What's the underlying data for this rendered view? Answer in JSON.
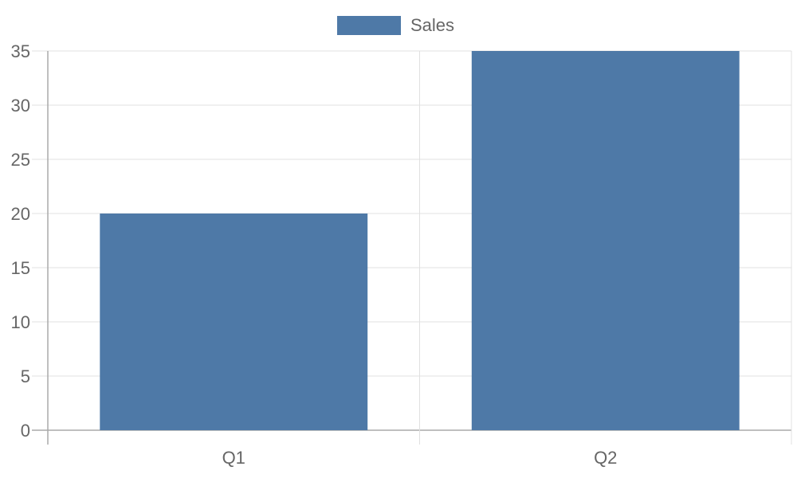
{
  "chart_data": {
    "type": "bar",
    "categories": [
      "Q1",
      "Q2"
    ],
    "series": [
      {
        "name": "Sales",
        "values": [
          20,
          35
        ],
        "color": "#4e79a7"
      }
    ],
    "title": "",
    "xlabel": "",
    "ylabel": "",
    "ylim": [
      0,
      35
    ],
    "yticks": [
      0,
      5,
      10,
      15,
      20,
      25,
      30,
      35
    ],
    "grid": true,
    "legend": "top"
  }
}
